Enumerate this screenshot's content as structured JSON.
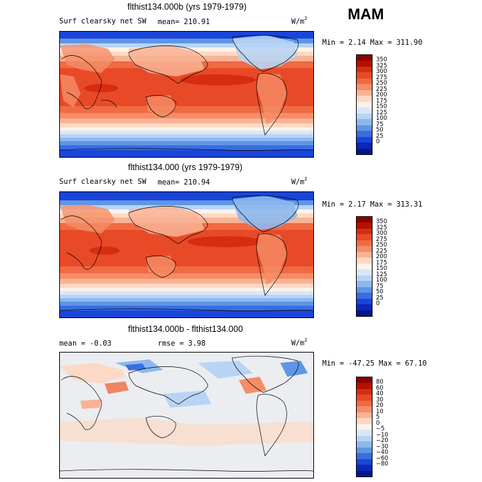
{
  "season": "MAM",
  "units_text": "W/m",
  "units_sup": "2",
  "chart_data": [
    {
      "type": "heatmap",
      "title": "flthist134.000b (yrs 1979-1979)",
      "variable_label": "Surf clearsky net SW",
      "stat_label": "mean= 210.91",
      "min_max_label": "Min =    2.14 Max = 311.90",
      "min": 2.14,
      "max": 311.9,
      "mean": 210.91,
      "colorbar_levels": [
        "350",
        "325",
        "300",
        "275",
        "250",
        "225",
        "200",
        "175",
        "150",
        "125",
        "100",
        "75",
        "50",
        "25",
        "0"
      ],
      "colorbar_colors": [
        "#8b0000",
        "#b40f00",
        "#d62d10",
        "#e84a28",
        "#f06a44",
        "#f58d67",
        "#f9b394",
        "#fcd9c4",
        "#fdf2ea",
        "#d8e8f8",
        "#b8d4f4",
        "#8db8ee",
        "#5f95e5",
        "#3a6de0",
        "#1a45d8",
        "#0c26b8",
        "#001889"
      ]
    },
    {
      "type": "heatmap",
      "title": "flthist134.000 (yrs 1979-1979)",
      "variable_label": "Surf clearsky net SW",
      "stat_label": "mean= 210.94",
      "min_max_label": "Min =    2.17 Max = 313.31",
      "min": 2.17,
      "max": 313.31,
      "mean": 210.94,
      "colorbar_levels": [
        "350",
        "325",
        "300",
        "275",
        "250",
        "225",
        "200",
        "175",
        "150",
        "125",
        "100",
        "75",
        "50",
        "25",
        "0"
      ],
      "colorbar_colors": [
        "#8b0000",
        "#b40f00",
        "#d62d10",
        "#e84a28",
        "#f06a44",
        "#f58d67",
        "#f9b394",
        "#fcd9c4",
        "#fdf2ea",
        "#d8e8f8",
        "#b8d4f4",
        "#8db8ee",
        "#5f95e5",
        "#3a6de0",
        "#1a45d8",
        "#0c26b8",
        "#001889"
      ]
    },
    {
      "type": "heatmap",
      "title": "flthist134.000b - flthist134.000",
      "stat_label_1": "mean =   -0.03",
      "stat_label_2": "rmse =    3.98",
      "min_max_label": "Min = -47.25 Max =  67.10",
      "min": -47.25,
      "max": 67.1,
      "mean": -0.03,
      "rmse": 3.98,
      "colorbar_levels": [
        "80",
        "60",
        "40",
        "30",
        "20",
        "10",
        "5",
        "0",
        "−5",
        "−10",
        "−20",
        "−30",
        "−40",
        "−60",
        "−80"
      ],
      "colorbar_colors": [
        "#8b0000",
        "#b40f00",
        "#d62d10",
        "#e84a28",
        "#f06a44",
        "#f58d67",
        "#f9b394",
        "#fcd9c4",
        "#fdf2ea",
        "#d8e8f8",
        "#b8d4f4",
        "#8db8ee",
        "#5f95e5",
        "#3a6de0",
        "#1a45d8",
        "#0c26b8",
        "#001889"
      ]
    }
  ]
}
